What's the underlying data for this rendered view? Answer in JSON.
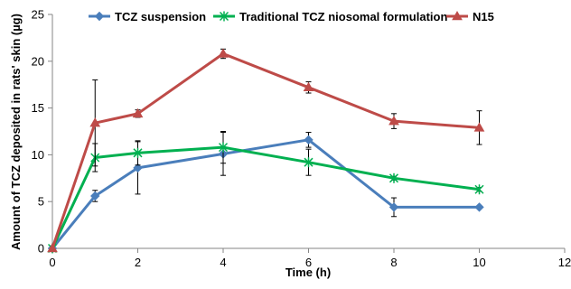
{
  "chart_data": {
    "type": "line",
    "title": "",
    "xlabel": "Time (h)",
    "ylabel": "Amount of TCZ deposited in rats' skin (µg)",
    "xlim": [
      0,
      12
    ],
    "ylim": [
      0,
      25
    ],
    "xticks": [
      0,
      2,
      4,
      6,
      8,
      10,
      12
    ],
    "yticks": [
      0,
      5,
      10,
      15,
      20,
      25
    ],
    "grid": false,
    "legend_position": "top",
    "series": [
      {
        "name": "TCZ suspension",
        "color": "#4a7ebb",
        "marker": "diamond",
        "x": [
          0,
          1,
          2,
          4,
          6,
          8,
          10
        ],
        "y": [
          0,
          5.6,
          8.6,
          10.1,
          11.6,
          4.4,
          4.4
        ],
        "error": [
          0,
          0.6,
          2.8,
          2.3,
          0.8,
          1.0,
          0
        ]
      },
      {
        "name": "Traditional TCZ niosomal formulation",
        "color": "#00b050",
        "marker": "x",
        "x": [
          0,
          1,
          2,
          4,
          6,
          8,
          10
        ],
        "y": [
          0,
          9.7,
          10.2,
          10.8,
          9.2,
          7.5,
          6.3
        ],
        "error": [
          0,
          1.5,
          1.3,
          1.7,
          1.4,
          0.2,
          0.2
        ]
      },
      {
        "name": "N15",
        "color": "#be4b48",
        "marker": "triangle",
        "x": [
          0,
          1,
          2,
          4,
          6,
          8,
          10
        ],
        "y": [
          0,
          13.4,
          14.4,
          20.8,
          17.2,
          13.6,
          12.9
        ],
        "error": [
          0,
          4.6,
          0.4,
          0.5,
          0.6,
          0.8,
          1.8
        ]
      }
    ]
  }
}
